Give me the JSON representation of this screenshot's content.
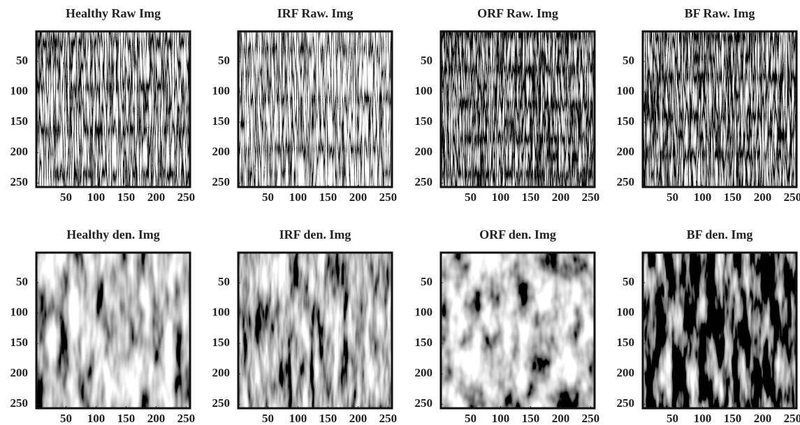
{
  "chart_data": [
    {
      "type": "image",
      "title": "Healthy Raw Img",
      "xlim": [
        0.5,
        256.5
      ],
      "ylim": [
        0.5,
        256.5
      ],
      "y_reversed": true,
      "xticks": [
        50,
        100,
        150,
        200,
        250
      ],
      "yticks": [
        50,
        100,
        150,
        200,
        250
      ]
    },
    {
      "type": "image",
      "title": "IRF Raw. Img",
      "xlim": [
        0.5,
        256.5
      ],
      "ylim": [
        0.5,
        256.5
      ],
      "y_reversed": true,
      "xticks": [
        50,
        100,
        150,
        200,
        250
      ],
      "yticks": [
        50,
        100,
        150,
        200,
        250
      ]
    },
    {
      "type": "image",
      "title": "ORF Raw. Img",
      "xlim": [
        0.5,
        256.5
      ],
      "ylim": [
        0.5,
        256.5
      ],
      "y_reversed": true,
      "xticks": [
        50,
        100,
        150,
        200,
        250
      ],
      "yticks": [
        50,
        100,
        150,
        200,
        250
      ]
    },
    {
      "type": "image",
      "title": "BF Raw. Img",
      "xlim": [
        0.5,
        256.5
      ],
      "ylim": [
        0.5,
        256.5
      ],
      "y_reversed": true,
      "xticks": [
        50,
        100,
        150,
        200,
        250
      ],
      "yticks": [
        50,
        100,
        150,
        200,
        250
      ]
    },
    {
      "type": "image",
      "title": "Healthy den. Img",
      "xlim": [
        0.5,
        256.5
      ],
      "ylim": [
        0.5,
        256.5
      ],
      "y_reversed": true,
      "xticks": [
        50,
        100,
        150,
        200,
        250
      ],
      "yticks": [
        50,
        100,
        150,
        200,
        250
      ]
    },
    {
      "type": "image",
      "title": "IRF den. Img",
      "xlim": [
        0.5,
        256.5
      ],
      "ylim": [
        0.5,
        256.5
      ],
      "y_reversed": true,
      "xticks": [
        50,
        100,
        150,
        200,
        250
      ],
      "yticks": [
        50,
        100,
        150,
        200,
        250
      ]
    },
    {
      "type": "image",
      "title": "ORF den. Img",
      "xlim": [
        0.5,
        256.5
      ],
      "ylim": [
        0.5,
        256.5
      ],
      "y_reversed": true,
      "xticks": [
        50,
        100,
        150,
        200,
        250
      ],
      "yticks": [
        50,
        100,
        150,
        200,
        250
      ]
    },
    {
      "type": "image",
      "title": "BF den. Img",
      "xlim": [
        0.5,
        256.5
      ],
      "ylim": [
        0.5,
        256.5
      ],
      "y_reversed": true,
      "xticks": [
        50,
        100,
        150,
        200,
        250
      ],
      "yticks": [
        50,
        100,
        150,
        200,
        250
      ]
    }
  ]
}
